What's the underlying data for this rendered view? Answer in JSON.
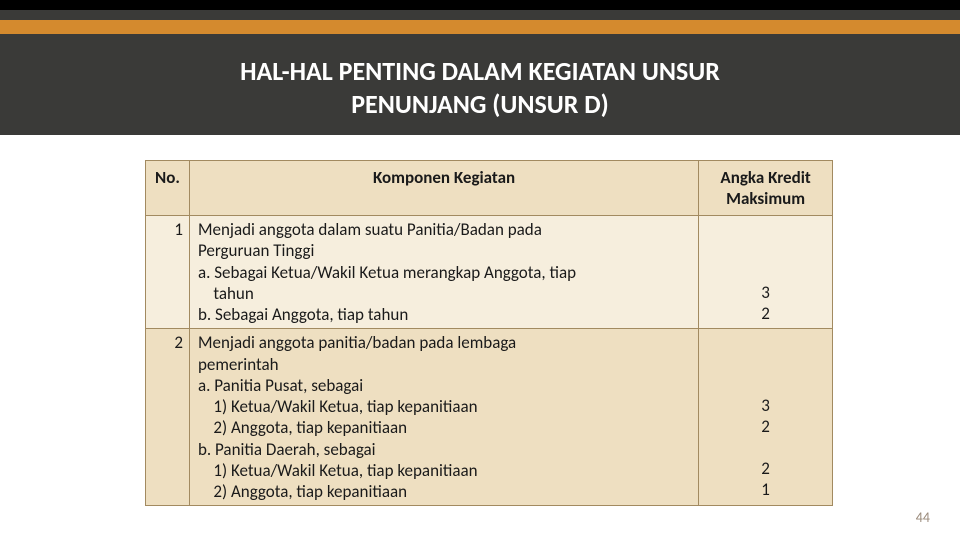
{
  "title_line1": "HAL-HAL PENTING DALAM KEGIATAN UNSUR",
  "title_line2": "PENUNJANG (UNSUR D)",
  "slide_number": "44",
  "columns": {
    "no": "No.",
    "komponen": "Komponen Kegiatan",
    "angka": "Angka Kredit Maksimum"
  },
  "rows": [
    {
      "no": "1",
      "komp_lines": [
        "Menjadi anggota dalam suatu Panitia/Badan pada",
        "Perguruan Tinggi",
        "a. Sebagai Ketua/Wakil Ketua merangkap Anggota, tiap",
        "    tahun",
        "b. Sebagai Anggota, tiap tahun"
      ],
      "ak_lines": [
        "",
        "",
        "",
        "3",
        "2"
      ]
    },
    {
      "no": "2",
      "komp_lines": [
        "Menjadi anggota panitia/badan pada lembaga",
        "pemerintah",
        "a. Panitia Pusat, sebagai",
        "    1) Ketua/Wakil Ketua, tiap kepanitiaan",
        "    2) Anggota, tiap kepanitiaan",
        "b. Panitia Daerah, sebagai",
        "    1) Ketua/Wakil Ketua, tiap kepanitiaan",
        "    2) Anggota, tiap kepanitiaan"
      ],
      "ak_lines": [
        "",
        "",
        "",
        "3",
        "2",
        "",
        "2",
        "1"
      ]
    }
  ],
  "colors": {
    "header_bg": "#3a3a38",
    "orange": "#d48a2e",
    "table_border": "#a28a60",
    "row_even": "#eedfc1",
    "row_odd": "#f6eedd",
    "text": "#1a1a1a",
    "title_text": "#ffffff",
    "slide_num": "#9a8a7a"
  },
  "fonts": {
    "title_size": 26,
    "table_header_size": 17,
    "table_body_size": 17,
    "slide_num_size": 14
  }
}
